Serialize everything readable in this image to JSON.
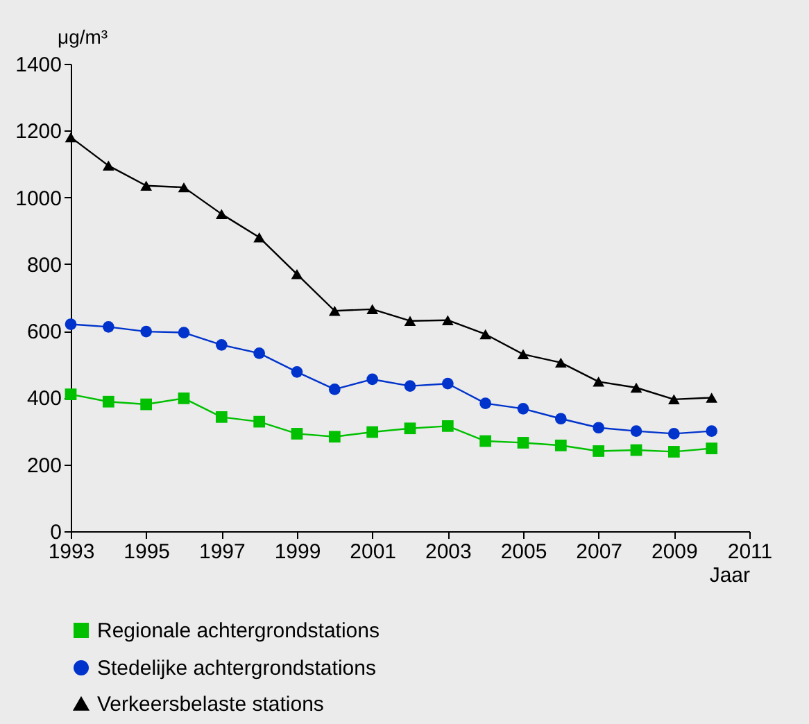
{
  "chart_data": {
    "type": "line",
    "ylabel": "μg/m³",
    "xlabel": "Jaar",
    "x": [
      1993,
      1994,
      1995,
      1996,
      1997,
      1998,
      1999,
      2000,
      2001,
      2002,
      2003,
      2004,
      2005,
      2006,
      2007,
      2008,
      2009,
      2010
    ],
    "xlim": [
      1993,
      2011
    ],
    "xticks": [
      1993,
      1995,
      1997,
      1999,
      2001,
      2003,
      2005,
      2007,
      2009,
      2011
    ],
    "ylim": [
      0,
      1400
    ],
    "yticks": [
      0,
      200,
      400,
      600,
      800,
      1000,
      1200,
      1400
    ],
    "grid": false,
    "legend": "bottom",
    "series": [
      {
        "name": "Regionale achtergrondstations",
        "color": "#00c000",
        "marker": "square",
        "values": [
          410,
          388,
          380,
          398,
          342,
          328,
          292,
          283,
          297,
          308,
          315,
          270,
          265,
          257,
          240,
          243,
          238,
          248
        ]
      },
      {
        "name": "Stedelijke achtergrondstations",
        "color": "#0033cc",
        "marker": "circle",
        "values": [
          620,
          612,
          598,
          595,
          558,
          533,
          477,
          425,
          455,
          435,
          442,
          383,
          367,
          337,
          310,
          300,
          292,
          300
        ]
      },
      {
        "name": "Verkeersbelaste stations",
        "color": "#000000",
        "marker": "triangle",
        "values": [
          1180,
          1095,
          1035,
          1030,
          950,
          880,
          770,
          660,
          665,
          630,
          632,
          590,
          530,
          505,
          448,
          430,
          395,
          400
        ]
      }
    ]
  }
}
